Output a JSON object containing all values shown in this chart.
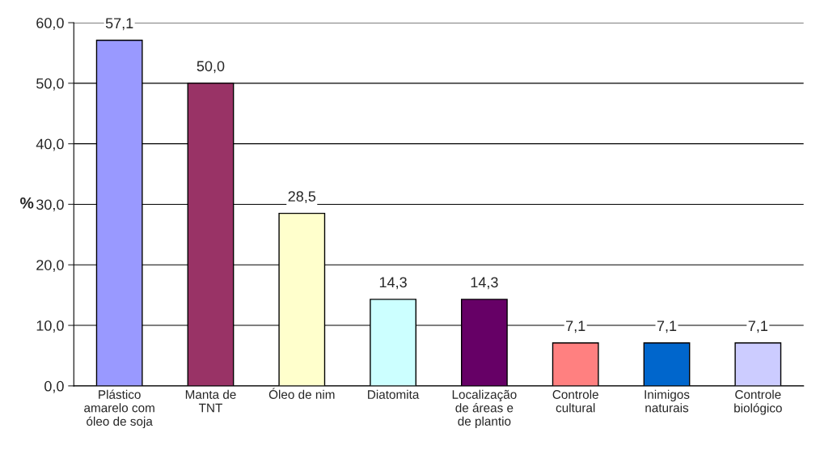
{
  "chart_data": {
    "type": "bar",
    "ylabel": "%",
    "categories": [
      "Plástico\namarelo com\nóleo de soja",
      "Manta de\nTNT",
      "Óleo de nim",
      "Diatomita",
      "Localização\nde áreas e\nde plantio",
      "Controle\ncultural",
      "Inimigos\nnaturais",
      "Controle\nbiológico"
    ],
    "values": [
      57.1,
      50.0,
      28.5,
      14.3,
      14.3,
      7.1,
      7.1,
      7.1
    ],
    "colors": [
      "#9999ff",
      "#993366",
      "#ffffcc",
      "#ccffff",
      "#660066",
      "#ff8080",
      "#0066cc",
      "#ccccff"
    ],
    "value_labels": [
      "57,1",
      "50,0",
      "28,5",
      "14,3",
      "14,3",
      "7,1",
      "7,1",
      "7,1"
    ],
    "ylim": [
      0,
      60
    ],
    "yticks": [
      {
        "value": 0,
        "label": "0,0"
      },
      {
        "value": 10,
        "label": "10,0"
      },
      {
        "value": 20,
        "label": "20,0"
      },
      {
        "value": 30,
        "label": "30,0"
      },
      {
        "value": 40,
        "label": "40,0"
      },
      {
        "value": 50,
        "label": "50,0"
      },
      {
        "value": 60,
        "label": "60,0"
      }
    ],
    "grid": "y"
  }
}
